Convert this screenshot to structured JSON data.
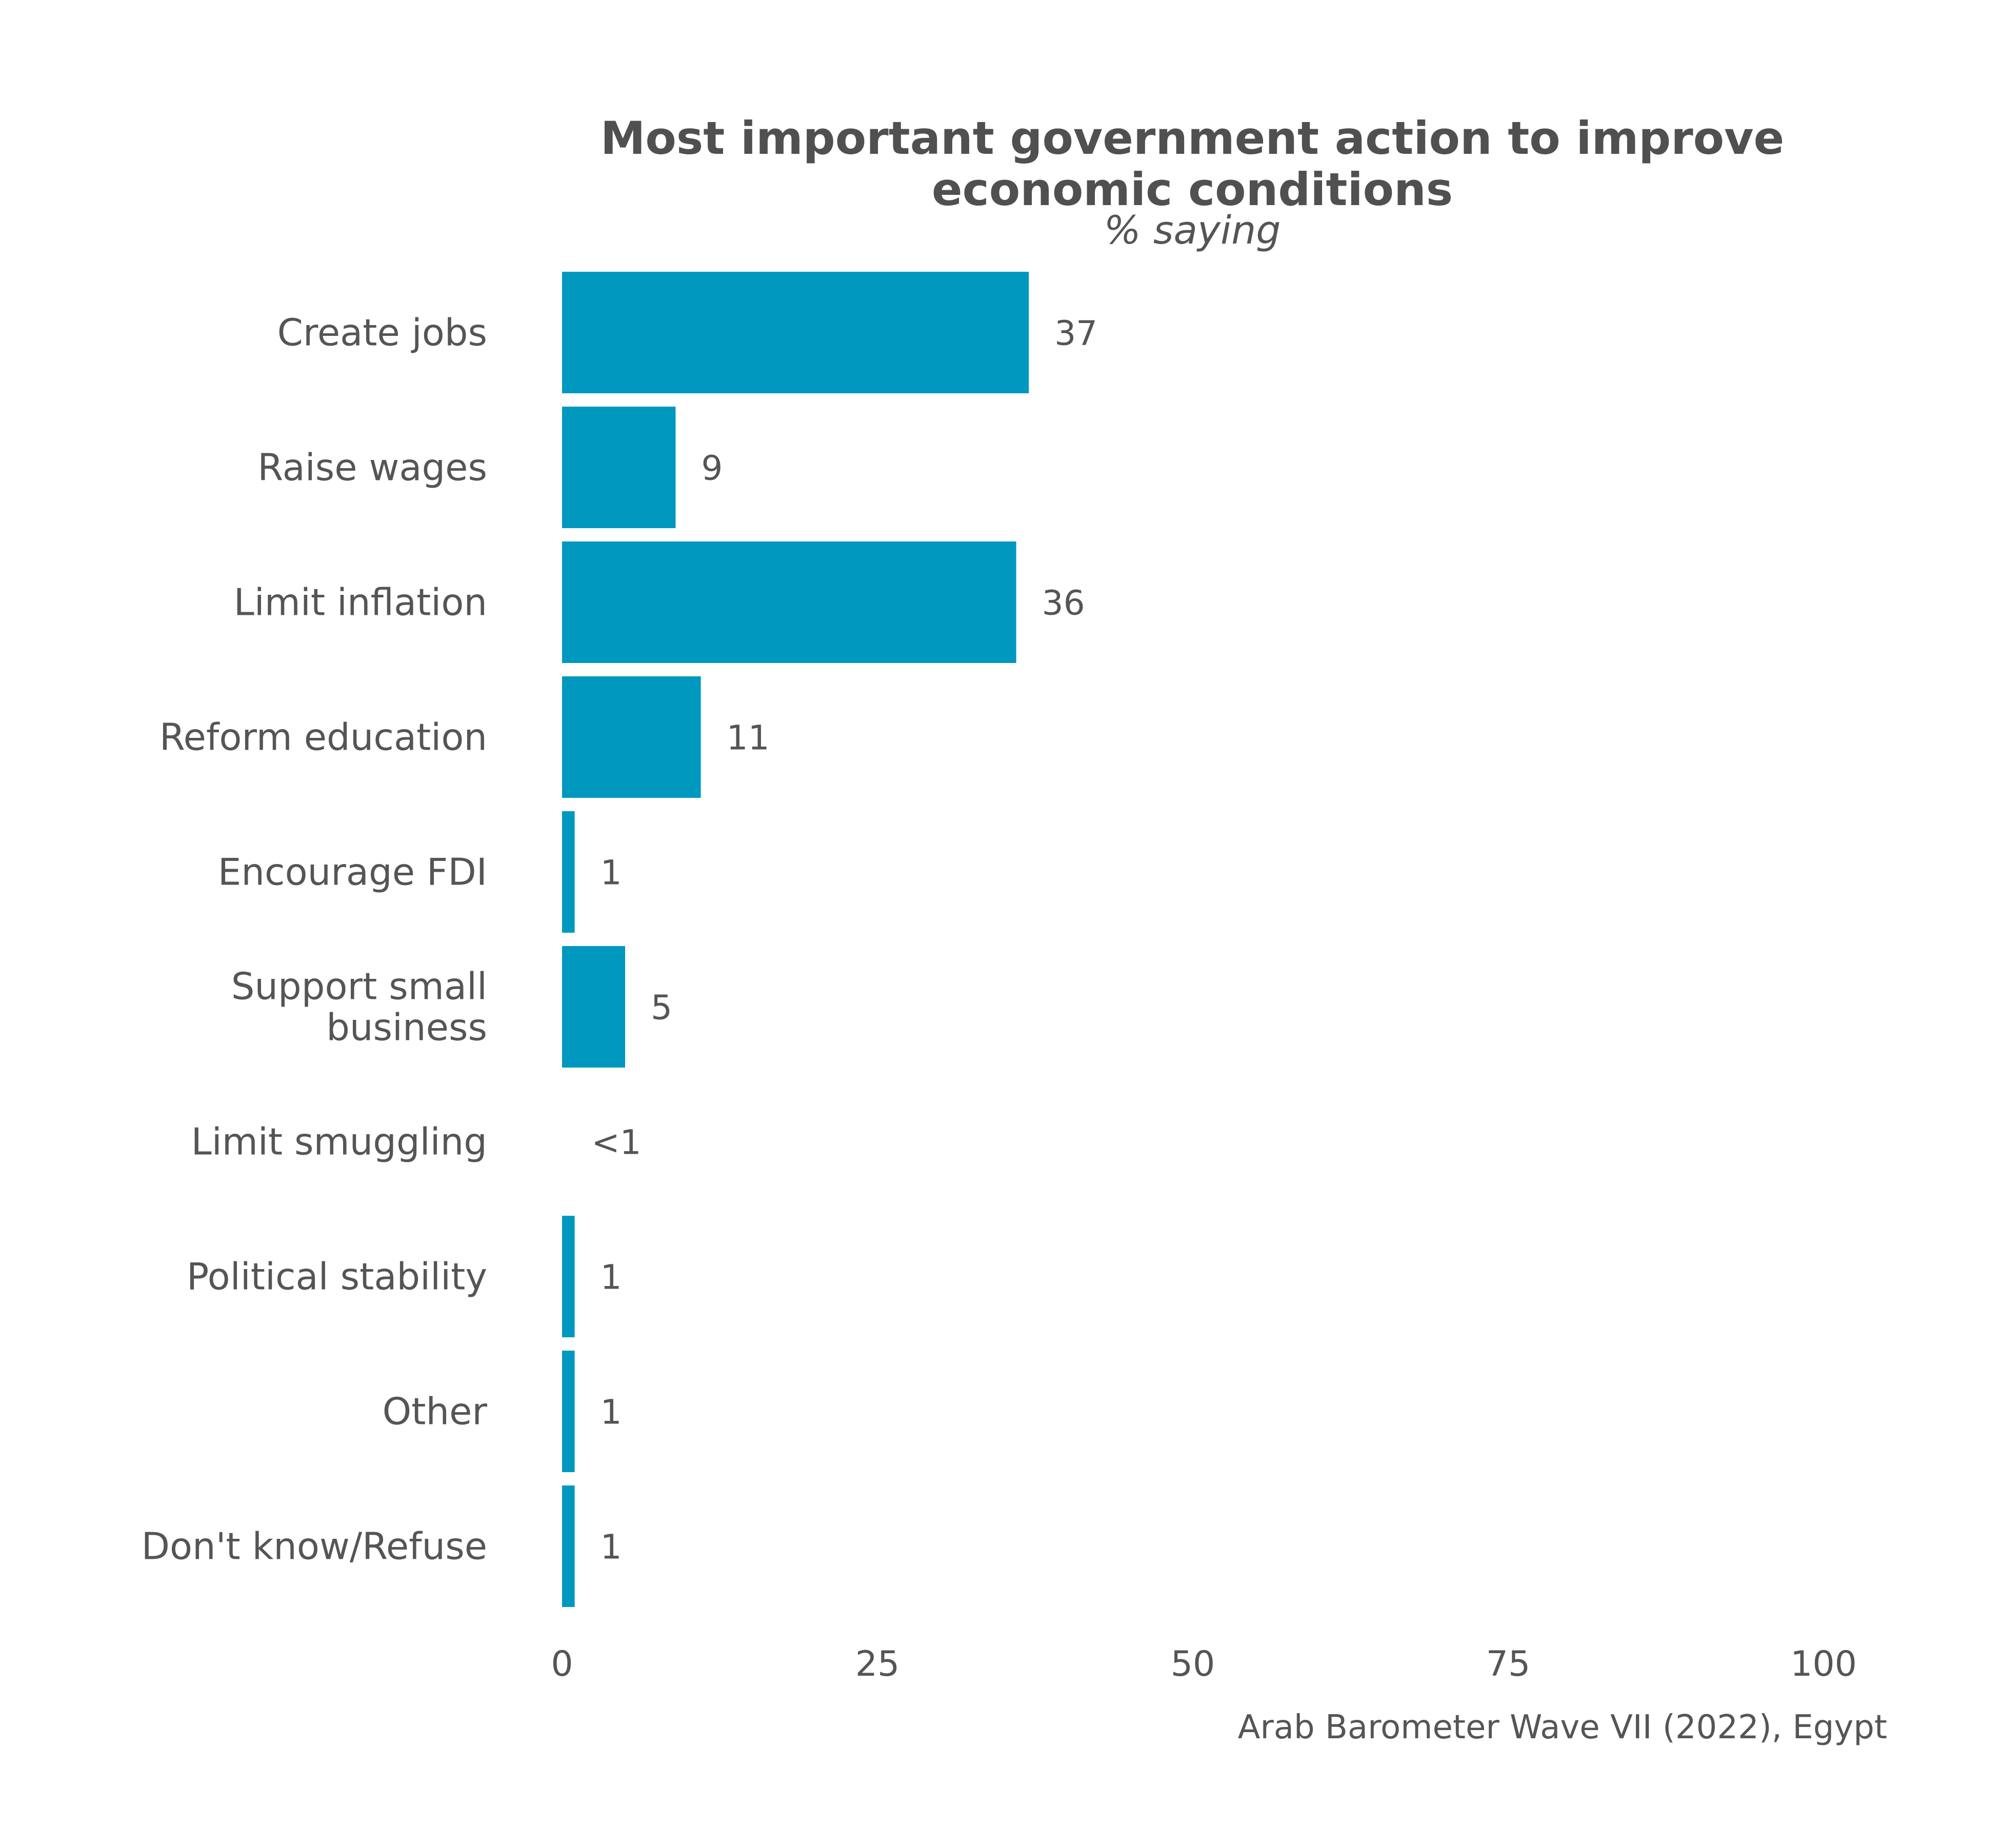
{
  "chart_data": {
    "type": "bar",
    "orientation": "horizontal",
    "title": "Most important government action to improve economic conditions",
    "title_lines": [
      "Most important government action to improve",
      "economic conditions"
    ],
    "subtitle": "% saying",
    "caption": "Arab Barometer Wave VII (2022), Egypt",
    "categories": [
      [
        "Create jobs"
      ],
      [
        "Raise wages"
      ],
      [
        "Limit inflation"
      ],
      [
        "Reform education"
      ],
      [
        "Encourage FDI"
      ],
      [
        "Support small",
        "business"
      ],
      [
        "Limit smuggling"
      ],
      [
        "Political stability"
      ],
      [
        "Other"
      ],
      [
        "Don't know/Refuse"
      ]
    ],
    "values": [
      37,
      9,
      36,
      11,
      1,
      5,
      0.3,
      1,
      1,
      1
    ],
    "value_labels": [
      "37",
      "9",
      "36",
      "11",
      "1",
      "5",
      "<1",
      "1",
      "1",
      "1"
    ],
    "xlim": [
      0,
      100
    ],
    "xticks": [
      0,
      25,
      50,
      75,
      100
    ],
    "grid": false,
    "legend": "none",
    "colors": {
      "bar": "#0098bf",
      "text": "#555555",
      "title": "#505050"
    }
  }
}
